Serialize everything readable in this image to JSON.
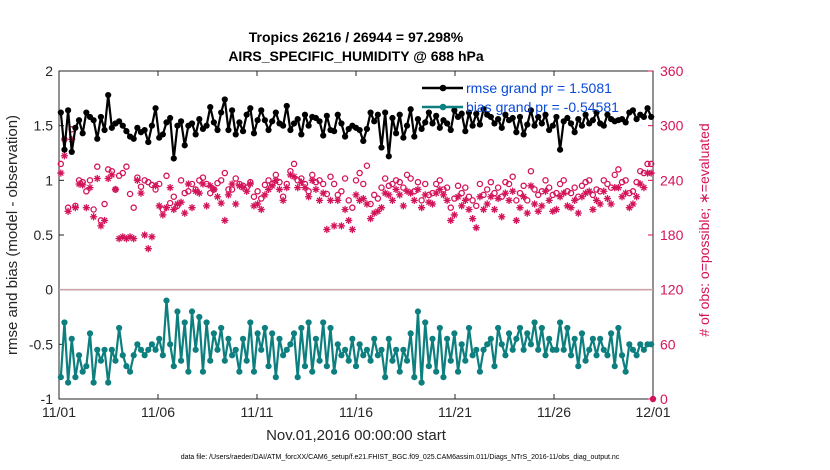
{
  "chart_data": {
    "type": "line",
    "title": "Tropics 26216 / 26944 = 97.298%",
    "subtitle": "AIRS_SPECIFIC_HUMIDITY @ 688 hPa",
    "xlabel": "Nov.01,2016 00:00:00 start",
    "ylabel": "rmse and bias (model - observation)",
    "ylabel_right": "# of obs: o=possible; ∗=evaluated",
    "footnote": "data file: /Users/raeder/DAI/ATM_forcXX/CAM6_setup/f.e21.FHIST_BGC.f09_025.CAM6assim.011/Diags_NTrS_2016-11/obs_diag_output.nc",
    "x_ticks": [
      "11/01",
      "11/06",
      "11/11",
      "11/16",
      "11/21",
      "11/26",
      "12/01"
    ],
    "xlim": [
      0,
      30
    ],
    "ylim": [
      -1,
      2
    ],
    "y_ticks": [
      "-1",
      "-0.5",
      "0",
      "0.5",
      "1",
      "1.5",
      "2"
    ],
    "ylim_right": [
      0,
      360
    ],
    "y_ticks_right": [
      "0",
      "60",
      "120",
      "180",
      "240",
      "300",
      "360"
    ],
    "zero_line": true,
    "colors": {
      "rmse": "#000000",
      "bias": "#0e7f7f",
      "obs": "#d4145a",
      "legend_text": "#0a4ad8"
    },
    "series": [
      {
        "name": "rmse grand pr = 1.5081",
        "axis": "left",
        "values": [
          1.62,
          1.28,
          1.64,
          1.26,
          1.48,
          1.55,
          1.43,
          1.62,
          1.58,
          1.55,
          1.38,
          1.58,
          1.46,
          1.78,
          1.48,
          1.52,
          1.54,
          1.5,
          1.45,
          1.4,
          1.38,
          1.48,
          1.44,
          1.46,
          1.35,
          1.5,
          1.66,
          1.39,
          1.42,
          1.53,
          1.57,
          1.2,
          1.5,
          1.54,
          1.32,
          1.5,
          1.52,
          1.42,
          1.56,
          1.47,
          1.5,
          1.67,
          1.53,
          1.46,
          1.62,
          1.74,
          1.46,
          1.64,
          1.42,
          1.53,
          1.45,
          1.6,
          1.66,
          1.43,
          1.55,
          1.64,
          1.55,
          1.46,
          1.54,
          1.62,
          1.52,
          1.5,
          1.68,
          1.46,
          1.52,
          1.56,
          1.42,
          1.6,
          1.5,
          1.58,
          1.57,
          1.54,
          1.41,
          1.59,
          1.46,
          1.45,
          1.6,
          1.52,
          1.4,
          1.47,
          1.5,
          1.48,
          1.46,
          1.36,
          1.47,
          1.62,
          1.54,
          1.6,
          1.3,
          1.62,
          1.22,
          1.57,
          1.43,
          1.6,
          1.39,
          1.5,
          1.65,
          1.4,
          1.56,
          1.47,
          1.53,
          1.62,
          1.52,
          1.59,
          1.48,
          1.55,
          1.52,
          1.46,
          1.64,
          1.58,
          1.61,
          1.45,
          1.62,
          1.5,
          1.61,
          1.51,
          1.65,
          1.6,
          1.58,
          1.52,
          1.56,
          1.48,
          1.6,
          1.55,
          1.57,
          1.44,
          1.58,
          1.42,
          1.51,
          1.64,
          1.5,
          1.58,
          1.52,
          1.6,
          1.46,
          1.5,
          1.58,
          1.28,
          1.54,
          1.57,
          1.52,
          1.44,
          1.56,
          1.5,
          1.6,
          1.52,
          1.55,
          1.62,
          1.52,
          1.5,
          1.6,
          1.56,
          1.54,
          1.55,
          1.56,
          1.53,
          1.62,
          1.64,
          1.56,
          1.6,
          1.58,
          1.66,
          1.58
        ]
      },
      {
        "name": "bias grand pr = -0.54581",
        "axis": "left",
        "values": [
          -0.8,
          -0.3,
          -0.85,
          -0.45,
          -0.8,
          -0.6,
          -0.75,
          -0.7,
          -0.4,
          -0.85,
          -0.55,
          -0.65,
          -0.55,
          -0.85,
          -0.55,
          -0.65,
          -0.35,
          -0.6,
          -0.7,
          -0.75,
          -0.6,
          -0.5,
          -0.55,
          -0.6,
          -0.55,
          -0.5,
          -0.55,
          -0.45,
          -0.6,
          -0.1,
          -0.5,
          -0.7,
          -0.2,
          -0.65,
          -0.3,
          -0.75,
          -0.2,
          -0.55,
          -0.25,
          -0.75,
          -0.3,
          -0.65,
          -0.4,
          -0.55,
          -0.35,
          -0.65,
          -0.45,
          -0.6,
          -0.55,
          -0.75,
          -0.45,
          -0.65,
          -0.3,
          -0.75,
          -0.4,
          -0.55,
          -0.35,
          -0.7,
          -0.4,
          -0.8,
          -0.45,
          -0.6,
          -0.55,
          -0.5,
          -0.4,
          -0.8,
          -0.35,
          -0.7,
          -0.3,
          -0.75,
          -0.45,
          -0.65,
          -0.3,
          -0.7,
          -0.35,
          -0.75,
          -0.5,
          -0.6,
          -0.55,
          -0.65,
          -0.45,
          -0.7,
          -0.5,
          -0.6,
          -0.55,
          -0.65,
          -0.45,
          -0.6,
          -0.55,
          -0.8,
          -0.45,
          -0.65,
          -0.55,
          -0.75,
          -0.55,
          -0.65,
          -0.4,
          -0.8,
          -0.2,
          -0.85,
          -0.3,
          -0.7,
          -0.45,
          -0.75,
          -0.35,
          -0.8,
          -0.45,
          -0.65,
          -0.4,
          -0.75,
          -0.5,
          -0.65,
          -0.35,
          -0.6,
          -0.55,
          -0.75,
          -0.55,
          -0.5,
          -0.45,
          -0.7,
          -0.35,
          -0.5,
          -0.6,
          -0.4,
          -0.55,
          -0.45,
          -0.35,
          -0.55,
          -0.4,
          -0.5,
          -0.3,
          -0.55,
          -0.35,
          -0.6,
          -0.45,
          -0.55,
          -0.55,
          -0.3,
          -0.55,
          -0.35,
          -0.6,
          -0.45,
          -0.7,
          -0.4,
          -0.65,
          -0.55,
          -0.45,
          -0.6,
          -0.45,
          -0.55,
          -0.6,
          -0.4,
          -0.7,
          -0.35,
          -0.6,
          -0.75,
          -0.5,
          -0.55,
          -0.6,
          -0.5,
          -0.55,
          -0.5,
          -0.5
        ]
      },
      {
        "name": "possible",
        "axis": "right",
        "marker": "o",
        "values": [
          258,
          285,
          210,
          296,
          212,
          240,
          238,
          228,
          240,
          208,
          255,
          196,
          214,
          252,
          250,
          230,
          245,
          248,
          255,
          225,
          210,
          243,
          233,
          240,
          238,
          235,
          230,
          236,
          208,
          245,
          215,
          222,
          212,
          240,
          226,
          228,
          236,
          230,
          240,
          243,
          236,
          226,
          230,
          237,
          240,
          248,
          230,
          230,
          242,
          236,
          234,
          232,
          238,
          222,
          228,
          220,
          235,
          240,
          236,
          246,
          238,
          222,
          236,
          250,
          258,
          240,
          242,
          236,
          228,
          246,
          238,
          240,
          236,
          225,
          244,
          236,
          224,
          228,
          242,
          218,
          210,
          240,
          248,
          236,
          256,
          214,
          224,
          220,
          232,
          242,
          234,
          236,
          240,
          238,
          232,
          246,
          242,
          228,
          238,
          218,
          236,
          224,
          226,
          236,
          240,
          230,
          232,
          210,
          220,
          234,
          226,
          232,
          222,
          218,
          212,
          236,
          224,
          230,
          238,
          226,
          232,
          222,
          238,
          236,
          244,
          218,
          226,
          234,
          218,
          250,
          230,
          224,
          228,
          240,
          232,
          224,
          226,
          236,
          240,
          228,
          226,
          232,
          222,
          234,
          238,
          240,
          224,
          230,
          228,
          240,
          236,
          232,
          246,
          252,
          238,
          240,
          226,
          228,
          238,
          250,
          248,
          258,
          258
        ]
      },
      {
        "name": "evaluated",
        "axis": "right",
        "marker": "*",
        "values": [
          248,
          267,
          206,
          285,
          210,
          236,
          235,
          210,
          232,
          200,
          242,
          190,
          196,
          242,
          246,
          230,
          176,
          178,
          176,
          178,
          176,
          240,
          226,
          180,
          165,
          178,
          234,
          212,
          202,
          210,
          232,
          208,
          214,
          216,
          204,
          236,
          210,
          228,
          226,
          236,
          212,
          234,
          230,
          222,
          215,
          196,
          224,
          236,
          214,
          234,
          232,
          228,
          236,
          212,
          214,
          208,
          224,
          230,
          234,
          240,
          230,
          218,
          232,
          246,
          244,
          232,
          238,
          232,
          222,
          240,
          230,
          218,
          226,
          186,
          218,
          190,
          218,
          190,
          208,
          196,
          186,
          224,
          218,
          220,
          214,
          198,
          204,
          206,
          210,
          226,
          224,
          218,
          230,
          224,
          212,
          228,
          226,
          218,
          230,
          210,
          224,
          216,
          214,
          226,
          230,
          224,
          218,
          196,
          202,
          222,
          212,
          218,
          208,
          198,
          188,
          222,
          208,
          214,
          222,
          208,
          220,
          200,
          226,
          218,
          228,
          196,
          210,
          222,
          204,
          234,
          214,
          206,
          212,
          228,
          218,
          206,
          208,
          222,
          226,
          212,
          210,
          218,
          204,
          222,
          226,
          228,
          208,
          218,
          214,
          228,
          220,
          214,
          232,
          232,
          222,
          226,
          210,
          214,
          222,
          236,
          232,
          248,
          248
        ]
      }
    ]
  }
}
